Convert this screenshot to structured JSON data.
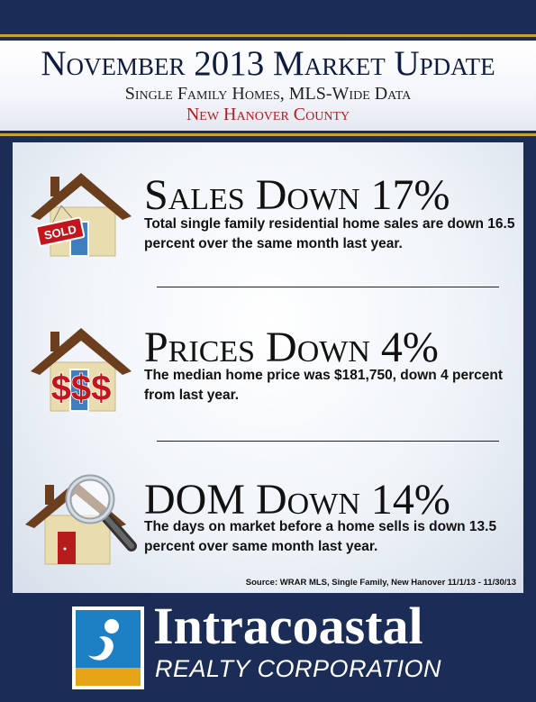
{
  "header": {
    "title": "November 2013 Market Update",
    "subtitle": "Single Family Homes, MLS-Wide Data",
    "county": "New Hanover County"
  },
  "stats": [
    {
      "icon": "sold-house-icon",
      "badge": "SOLD",
      "title": "Sales Down 17%",
      "description": "Total single family residential home sales are down 16.5 percent over the same month last year."
    },
    {
      "icon": "price-house-icon",
      "badge": "$$$",
      "title": "Prices Down 4%",
      "description": "The median home price was $181,750, down 4 percent from last year."
    },
    {
      "icon": "magnifier-house-icon",
      "title": "DOM Down 14%",
      "description": "The days on market before a home sells is down 13.5 percent over same month last year."
    }
  ],
  "source": "Source: WRAR MLS, Single Family, New Hanover 11/1/13 - 11/30/13",
  "brand": {
    "name": "Intracoastal",
    "subtitle": "REALTY CORPORATION"
  },
  "colors": {
    "navy": "#1b2d57",
    "gold": "#c9a227",
    "red": "#b21c22",
    "roof": "#6b3f1d",
    "wall": "#e9dcae"
  }
}
